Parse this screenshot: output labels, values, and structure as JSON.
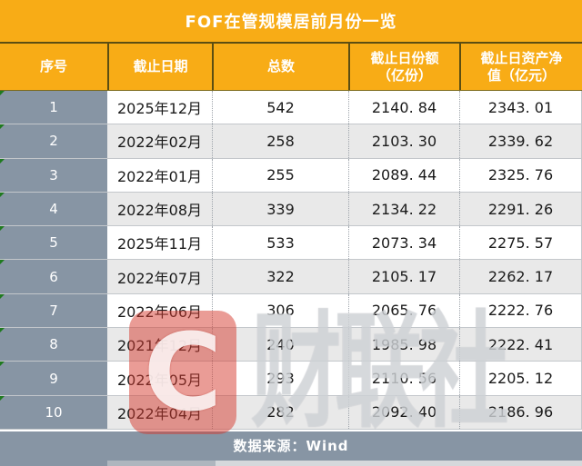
{
  "title": "FOF在管规模居前月份一览",
  "columns": [
    {
      "line1": "序号",
      "line2": ""
    },
    {
      "line1": "截止日期",
      "line2": ""
    },
    {
      "line1": "总数",
      "line2": ""
    },
    {
      "line1": "截止日份额",
      "line2": "（亿份）"
    },
    {
      "line1": "截止日资产净",
      "line2": "值（亿元）"
    }
  ],
  "rows": [
    {
      "no": "1",
      "date": "2025年12月",
      "total": "542",
      "share": "2140. 84",
      "nav": "2343. 01"
    },
    {
      "no": "2",
      "date": "2022年02月",
      "total": "258",
      "share": "2103. 30",
      "nav": "2339. 62"
    },
    {
      "no": "3",
      "date": "2022年01月",
      "total": "255",
      "share": "2089. 44",
      "nav": "2325. 76"
    },
    {
      "no": "4",
      "date": "2022年08月",
      "total": "339",
      "share": "2134. 22",
      "nav": "2291. 26"
    },
    {
      "no": "5",
      "date": "2025年11月",
      "total": "533",
      "share": "2073. 34",
      "nav": "2275. 57"
    },
    {
      "no": "6",
      "date": "2022年07月",
      "total": "322",
      "share": "2105. 17",
      "nav": "2262. 17"
    },
    {
      "no": "7",
      "date": "2022年06月",
      "total": "306",
      "share": "2065. 76",
      "nav": "2222. 76"
    },
    {
      "no": "8",
      "date": "2021年12月",
      "total": "240",
      "share": "1985. 98",
      "nav": "2222. 41"
    },
    {
      "no": "9",
      "date": "2022年05月",
      "total": "293",
      "share": "2110. 56",
      "nav": "2205. 12"
    },
    {
      "no": "10",
      "date": "2022年04月",
      "total": "282",
      "share": "2092. 40",
      "nav": "2186. 96"
    }
  ],
  "footer": {
    "source_label": "数据来源：Wind"
  },
  "watermark": {
    "logo_letter": "C",
    "text": "财联社"
  },
  "colors": {
    "header_bg": "#F8AC16",
    "header_divider": "#5C4E12",
    "index_bg": "#8795A4",
    "alt_row_bg": "#E9E9E9",
    "footer_bg": "#8795A4",
    "watermark_red": "#D63A2E",
    "comment_triangle_green": "#1F7A1F"
  },
  "chart_data": {
    "type": "table",
    "title": "FOF在管规模居前月份一览",
    "columns": [
      "序号",
      "截止日期",
      "总数",
      "截止日份额（亿份）",
      "截止日资产净值（亿元）"
    ],
    "rows": [
      [
        1,
        "2025年12月",
        542,
        2140.84,
        2343.01
      ],
      [
        2,
        "2022年02月",
        258,
        2103.3,
        2339.62
      ],
      [
        3,
        "2022年01月",
        255,
        2089.44,
        2325.76
      ],
      [
        4,
        "2022年08月",
        339,
        2134.22,
        2291.26
      ],
      [
        5,
        "2025年11月",
        533,
        2073.34,
        2275.57
      ],
      [
        6,
        "2022年07月",
        322,
        2105.17,
        2262.17
      ],
      [
        7,
        "2022年06月",
        306,
        2065.76,
        2222.76
      ],
      [
        8,
        "2021年12月",
        240,
        1985.98,
        2222.41
      ],
      [
        9,
        "2022年05月",
        293,
        2110.56,
        2205.12
      ],
      [
        10,
        "2022年04月",
        282,
        2092.4,
        2186.96
      ]
    ],
    "source": "数据来源：Wind"
  }
}
